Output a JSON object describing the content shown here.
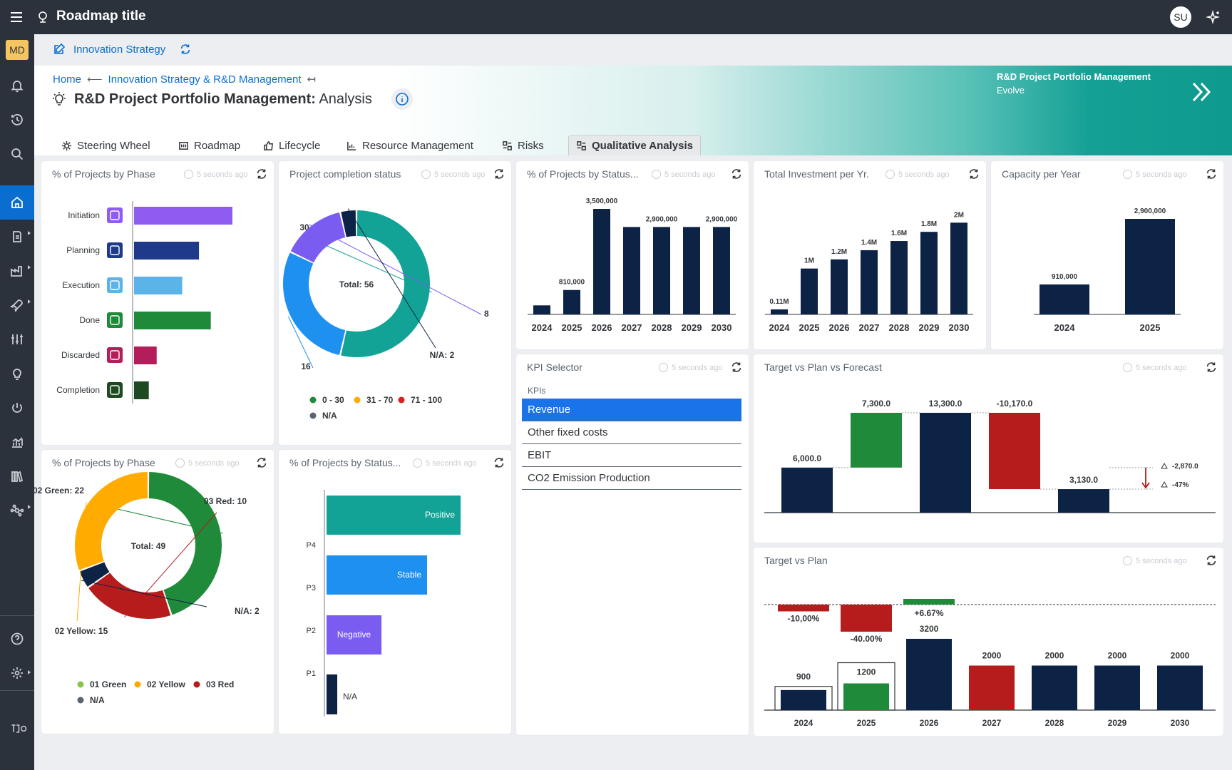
{
  "app": {
    "title": "Roadmap title",
    "user_initials": "SU",
    "workspace_initials": "MD"
  },
  "subheader": {
    "title": "Innovation Strategy"
  },
  "breadcrumb": {
    "home": "Home",
    "parent": "Innovation Strategy & R&D Management"
  },
  "page": {
    "title_bold": "R&D Project Portfolio Management:",
    "title_rest": "Analysis"
  },
  "hero": {
    "title": "R&D Project Portfolio Management",
    "subtitle": "Evolve"
  },
  "tabs": [
    {
      "label": "Steering Wheel"
    },
    {
      "label": "Roadmap"
    },
    {
      "label": "Lifecycle"
    },
    {
      "label": "Resource Management"
    },
    {
      "label": "Risks"
    },
    {
      "label": "Qualitative Analysis"
    }
  ],
  "timestamp": "5 seconds ago",
  "cards": {
    "phase_bar": {
      "title": "% of Projects by Phase"
    },
    "completion": {
      "title": "Project completion status"
    },
    "status_year": {
      "title": "% of Projects by Status..."
    },
    "investment": {
      "title": "Total Investment per Yr."
    },
    "capacity": {
      "title": "Capacity per Year"
    },
    "phase_donut": {
      "title": "% of Projects by Phase"
    },
    "status_bar": {
      "title": "% of Projects by Status..."
    },
    "kpi": {
      "title": "KPI Selector",
      "label": "KPIs",
      "items": [
        "Revenue",
        "Other fixed costs",
        "EBIT",
        "CO2 Emission Production"
      ],
      "selected": 0
    },
    "tvpvf": {
      "title": "Target vs Plan vs Forecast"
    },
    "tvp": {
      "title": "Target vs Plan"
    }
  },
  "colors": {
    "navy": "#0d2346",
    "green": "#1f8a3a",
    "red": "#b71c1c",
    "teal": "#12a396",
    "blue": "#1e90f0",
    "purple": "#7b5cf0",
    "orange": "#ffab00",
    "accent": "#0a6ed1"
  },
  "chart_data": [
    {
      "id": "phase_bar",
      "type": "bar",
      "orientation": "horizontal",
      "categories": [
        "Initiation",
        "Planning",
        "Execution",
        "Done",
        "Discarded",
        "Completion"
      ],
      "values": [
        100,
        66,
        49,
        78,
        23,
        15
      ],
      "colors": [
        "#8e5cf0",
        "#1f3a8a",
        "#5cb3e8",
        "#1f8a3a",
        "#b31e5a",
        "#1d4a20"
      ]
    },
    {
      "id": "completion",
      "type": "pie",
      "center_label": "Total: 56",
      "slices": [
        {
          "label": "0 - 30",
          "value": 30,
          "color": "#12a396"
        },
        {
          "label": "31 - 70",
          "value": 16,
          "color": "#1e90f0"
        },
        {
          "label": "71 - 100",
          "value": 8,
          "color": "#7b5cf0"
        },
        {
          "label": "N/A",
          "value": 2,
          "color": "#0d2346",
          "display": "N/A: 2"
        }
      ],
      "legend": [
        {
          "label": "0 - 30",
          "color": "#1f8a3a"
        },
        {
          "label": "31 - 70",
          "color": "#ffab00"
        },
        {
          "label": "71 - 100",
          "color": "#e01e1e"
        },
        {
          "label": "N/A",
          "color": "#5b6470"
        }
      ]
    },
    {
      "id": "status_year",
      "type": "bar",
      "categories": [
        "2024",
        "2025",
        "2026",
        "2027",
        "2028",
        "2029",
        "2030"
      ],
      "values": [
        300000,
        810000,
        3500000,
        2900000,
        2900000,
        2900000,
        2900000
      ],
      "data_labels": [
        "",
        "810,000",
        "3,500,000",
        "",
        "2,900,000",
        "",
        "2,900,000"
      ],
      "ylim": [
        0,
        3500000
      ]
    },
    {
      "id": "investment",
      "type": "bar",
      "categories": [
        "2024",
        "2025",
        "2026",
        "2027",
        "2028",
        "2029",
        "2030"
      ],
      "values": [
        0.11,
        1,
        1.2,
        1.4,
        1.6,
        1.8,
        2
      ],
      "data_labels": [
        "0.11M",
        "1M",
        "1.2M",
        "1.4M",
        "1.6M",
        "1.8M",
        "2M"
      ],
      "ylim": [
        0,
        2.3
      ]
    },
    {
      "id": "capacity",
      "type": "bar",
      "categories": [
        "2024",
        "2025"
      ],
      "values": [
        910000,
        2900000
      ],
      "data_labels": [
        "910,000",
        "2,900,000"
      ],
      "ylim": [
        0,
        2900000
      ]
    },
    {
      "id": "phase_donut",
      "type": "pie",
      "center_label": "Total: 49",
      "slices": [
        {
          "label": "02 Green",
          "value": 22,
          "color": "#1f8a3a",
          "display": "02 Green: 22"
        },
        {
          "label": "03 Red",
          "value": 10,
          "color": "#b71c1c",
          "display": "03 Red: 10"
        },
        {
          "label": "N/A",
          "value": 2,
          "color": "#0d2346",
          "display": "N/A: 2"
        },
        {
          "label": "02 Yellow",
          "value": 15,
          "color": "#ffab00",
          "display": "02 Yellow: 15"
        }
      ],
      "legend": [
        {
          "label": "01 Green",
          "color": "#8bc34a"
        },
        {
          "label": "02 Yellow",
          "color": "#ffab00"
        },
        {
          "label": "03 Red",
          "color": "#b71c1c"
        },
        {
          "label": "N/A",
          "color": "#5b6470"
        }
      ]
    },
    {
      "id": "status_bar",
      "type": "bar",
      "orientation": "horizontal",
      "categories": [
        "P4",
        "P3",
        "P2",
        "P1"
      ],
      "values": [
        100,
        75,
        41,
        8
      ],
      "bar_labels": [
        "Positive",
        "Stable",
        "Negative",
        "N/A"
      ],
      "colors": [
        "#12a396",
        "#1e90f0",
        "#7b5cf0",
        "#0d2346"
      ]
    },
    {
      "id": "tvpvf",
      "type": "bar",
      "subtype": "waterfall",
      "steps": [
        {
          "label": "6,000.0",
          "value": 6000,
          "kind": "total",
          "color": "#0d2346"
        },
        {
          "label": "7,300.0",
          "value": 7300,
          "kind": "delta",
          "color": "#1f8a3a"
        },
        {
          "label": "13,300.0",
          "value": 13300,
          "kind": "total",
          "color": "#0d2346"
        },
        {
          "label": "-10,170.0",
          "value": -10170,
          "kind": "delta",
          "color": "#b71c1c"
        },
        {
          "label": "3,130.0",
          "value": 3130,
          "kind": "total",
          "color": "#0d2346"
        }
      ],
      "annotations": [
        "-2,870.0",
        "-47%"
      ]
    },
    {
      "id": "tvp",
      "type": "bar",
      "categories": [
        "2024",
        "2025",
        "2026",
        "2027",
        "2028",
        "2029",
        "2030"
      ],
      "values": [
        900,
        1200,
        3200,
        2000,
        2000,
        2000,
        2000
      ],
      "targets": [
        1000,
        2000,
        null,
        null,
        null,
        null,
        null
      ],
      "colors": [
        "#0d2346",
        "#1f8a3a",
        "#0d2346",
        "#b71c1c",
        "#0d2346",
        "#0d2346",
        "#0d2346"
      ],
      "deviations": [
        {
          "label": "-10,00%",
          "value": -10,
          "color": "#b71c1c"
        },
        {
          "label": "-40.00%",
          "value": -40,
          "color": "#b71c1c"
        },
        {
          "label": "+6.67%",
          "value": 6.67,
          "color": "#1f8a3a"
        }
      ]
    }
  ]
}
